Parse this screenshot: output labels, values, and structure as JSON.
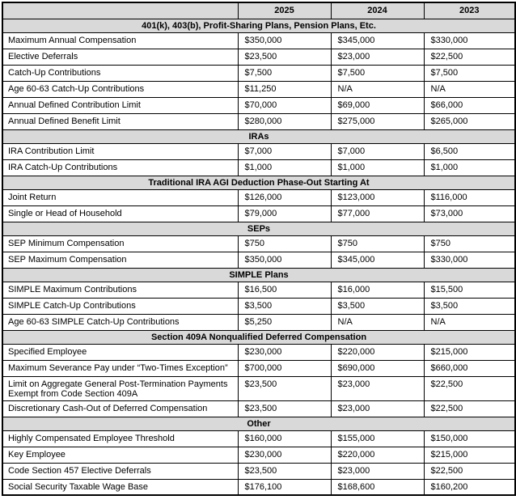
{
  "colors": {
    "header_bg": "#d9d9d9",
    "border": "#000000",
    "text": "#000000"
  },
  "table": {
    "columns": [
      "2025",
      "2024",
      "2023"
    ],
    "sections": [
      {
        "title": "401(k), 403(b), Profit-Sharing Plans, Pension Plans, Etc.",
        "rows": [
          {
            "label": "Maximum Annual Compensation",
            "values": [
              "$350,000",
              "$345,000",
              "$330,000"
            ]
          },
          {
            "label": "Elective Deferrals",
            "values": [
              "$23,500",
              "$23,000",
              "$22,500"
            ]
          },
          {
            "label": "Catch-Up Contributions",
            "values": [
              "$7,500",
              "$7,500",
              "$7,500"
            ]
          },
          {
            "label": "Age 60-63 Catch-Up Contributions",
            "values": [
              "$11,250",
              "N/A",
              "N/A"
            ]
          },
          {
            "label": "Annual Defined Contribution Limit",
            "values": [
              "$70,000",
              "$69,000",
              "$66,000"
            ]
          },
          {
            "label": "Annual Defined Benefit Limit",
            "values": [
              "$280,000",
              "$275,000",
              "$265,000"
            ]
          }
        ]
      },
      {
        "title": "IRAs",
        "rows": [
          {
            "label": "IRA Contribution Limit",
            "values": [
              "$7,000",
              "$7,000",
              "$6,500"
            ]
          },
          {
            "label": "IRA Catch-Up Contributions",
            "values": [
              "$1,000",
              "$1,000",
              "$1,000"
            ]
          }
        ]
      },
      {
        "title": "Traditional IRA AGI Deduction Phase-Out Starting At",
        "rows": [
          {
            "label": "Joint Return",
            "values": [
              "$126,000",
              "$123,000",
              "$116,000"
            ]
          },
          {
            "label": "Single or Head of Household",
            "values": [
              "$79,000",
              "$77,000",
              "$73,000"
            ]
          }
        ]
      },
      {
        "title": "SEPs",
        "rows": [
          {
            "label": "SEP Minimum Compensation",
            "values": [
              "$750",
              "$750",
              "$750"
            ]
          },
          {
            "label": "SEP Maximum Compensation",
            "values": [
              "$350,000",
              "$345,000",
              "$330,000"
            ]
          }
        ]
      },
      {
        "title": "SIMPLE Plans",
        "rows": [
          {
            "label": "SIMPLE Maximum Contributions",
            "values": [
              "$16,500",
              "$16,000",
              "$15,500"
            ]
          },
          {
            "label": "SIMPLE Catch-Up Contributions",
            "values": [
              "$3,500",
              "$3,500",
              "$3,500"
            ]
          },
          {
            "label": "Age 60-63 SIMPLE Catch-Up Contributions",
            "values": [
              "$5,250",
              "N/A",
              "N/A"
            ]
          }
        ]
      },
      {
        "title": "Section 409A Nonqualified Deferred Compensation",
        "rows": [
          {
            "label": "Specified Employee",
            "values": [
              "$230,000",
              "$220,000",
              "$215,000"
            ]
          },
          {
            "label": "Maximum Severance Pay under “Two-Times Exception”",
            "values": [
              "$700,000",
              "$690,000",
              "$660,000"
            ]
          },
          {
            "label": "Limit on Aggregate General Post-Termination Payments Exempt from Code Section 409A",
            "values": [
              "$23,500",
              "$23,000",
              "$22,500"
            ]
          },
          {
            "label": "Discretionary Cash-Out of Deferred Compensation",
            "values": [
              "$23,500",
              "$23,000",
              "$22,500"
            ]
          }
        ]
      },
      {
        "title": "Other",
        "rows": [
          {
            "label": "Highly Compensated Employee Threshold",
            "values": [
              "$160,000",
              "$155,000",
              "$150,000"
            ]
          },
          {
            "label": "Key Employee",
            "values": [
              "$230,000",
              "$220,000",
              "$215,000"
            ]
          },
          {
            "label": "Code Section 457 Elective Deferrals",
            "values": [
              "$23,500",
              "$23,000",
              "$22,500"
            ]
          },
          {
            "label": "Social Security Taxable Wage Base",
            "values": [
              "$176,100",
              "$168,600",
              "$160,200"
            ]
          }
        ]
      }
    ]
  }
}
